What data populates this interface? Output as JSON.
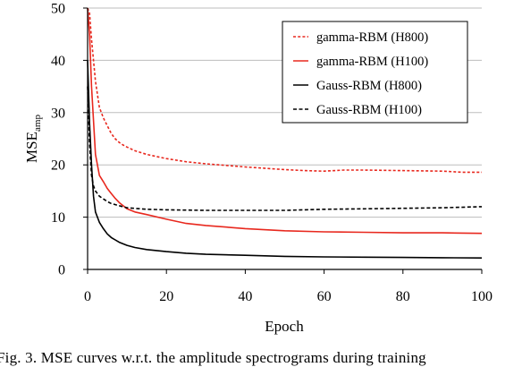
{
  "chart_data": {
    "type": "line",
    "xlabel": "Epoch",
    "ylabel": {
      "base": "MSE",
      "subscript": "amp"
    },
    "xlim": [
      0,
      100
    ],
    "ylim": [
      0,
      50
    ],
    "x_ticks": [
      0,
      20,
      40,
      60,
      80,
      100
    ],
    "y_ticks": [
      0,
      10,
      20,
      30,
      40,
      50
    ],
    "grid": "horizontal",
    "legend_position": "top-right",
    "series": [
      {
        "name": "gamma-RBM (H800)",
        "color": "#e8281e",
        "style": "dotted",
        "x": [
          0,
          0.5,
          1,
          2,
          3,
          4,
          5,
          6,
          7,
          8,
          9,
          10,
          12,
          15,
          20,
          25,
          30,
          40,
          50,
          55,
          60,
          65,
          70,
          80,
          90,
          95,
          100
        ],
        "y": [
          50,
          49,
          44,
          36,
          31,
          29,
          27.5,
          26,
          25,
          24.3,
          23.8,
          23.4,
          22.7,
          22,
          21.2,
          20.6,
          20.2,
          19.6,
          19.1,
          18.9,
          18.8,
          19,
          19,
          18.9,
          18.8,
          18.6,
          18.6
        ]
      },
      {
        "name": "gamma-RBM (H100)",
        "color": "#e8281e",
        "style": "solid",
        "x": [
          0,
          0.5,
          1,
          2,
          3,
          4,
          5,
          6,
          7,
          8,
          10,
          12,
          15,
          20,
          25,
          30,
          40,
          50,
          60,
          70,
          80,
          90,
          100
        ],
        "y": [
          50,
          45,
          35,
          22,
          18,
          16.8,
          15.5,
          14.5,
          13.6,
          12.8,
          11.6,
          11,
          10.5,
          9.6,
          8.8,
          8.4,
          7.8,
          7.4,
          7.2,
          7.1,
          7.0,
          7.0,
          6.9
        ]
      },
      {
        "name": "Gauss-RBM (H800)",
        "color": "#000000",
        "style": "solid",
        "x": [
          0,
          0.5,
          1,
          1.5,
          2,
          3,
          4,
          5,
          6,
          8,
          10,
          12,
          15,
          20,
          25,
          30,
          40,
          50,
          60,
          70,
          80,
          90,
          100
        ],
        "y": [
          40,
          28,
          20,
          14,
          11,
          9,
          7.8,
          6.8,
          6.1,
          5.2,
          4.6,
          4.2,
          3.8,
          3.4,
          3.1,
          2.9,
          2.7,
          2.5,
          2.4,
          2.35,
          2.3,
          2.25,
          2.2
        ]
      },
      {
        "name": "Gauss-RBM (H100)",
        "color": "#000000",
        "style": "dashed",
        "x": [
          0,
          0.5,
          1,
          1.5,
          2,
          3,
          4,
          5,
          6,
          8,
          10,
          15,
          20,
          30,
          40,
          50,
          60,
          70,
          80,
          90,
          100
        ],
        "y": [
          35,
          24,
          18,
          16,
          15,
          14,
          13.5,
          13,
          12.6,
          12.2,
          11.8,
          11.5,
          11.4,
          11.3,
          11.3,
          11.3,
          11.5,
          11.6,
          11.7,
          11.8,
          12.0
        ]
      }
    ]
  },
  "caption": "Fig. 3.  MSE curves w.r.t. the amplitude spectrograms during training"
}
